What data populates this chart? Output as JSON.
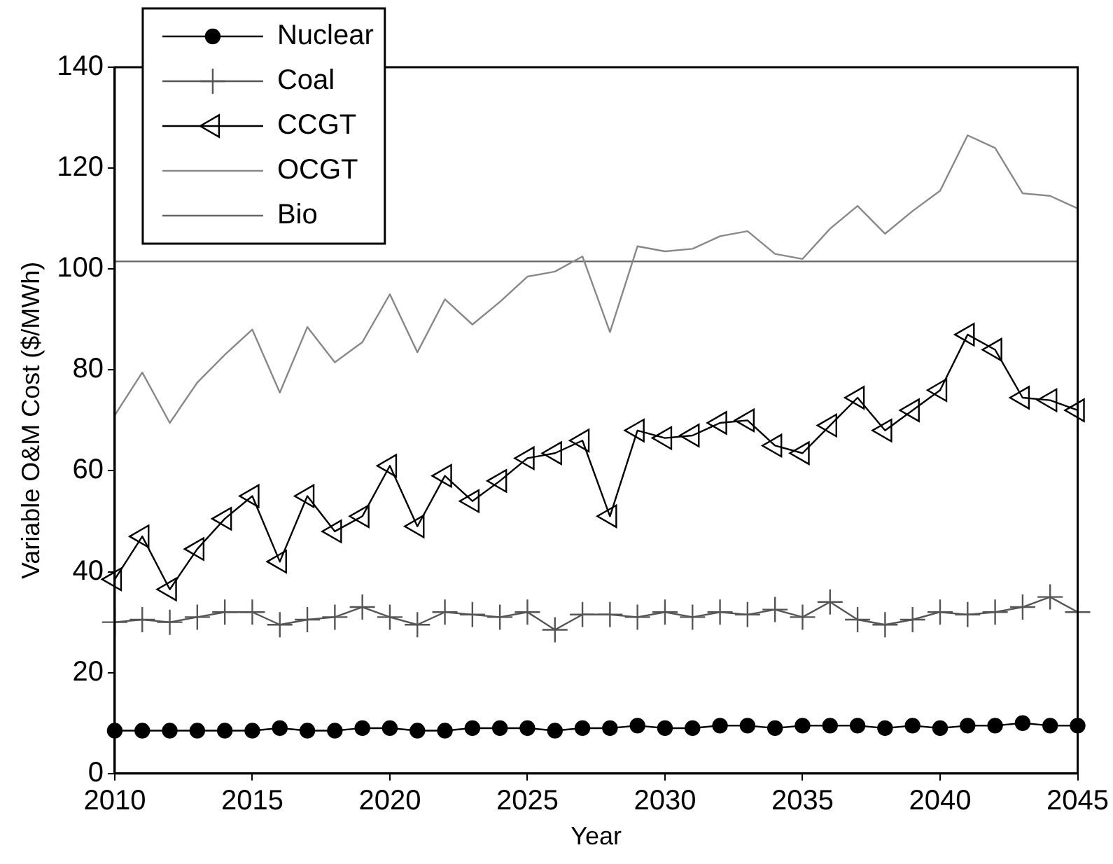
{
  "chart_data": {
    "type": "line",
    "xlabel": "Year",
    "ylabel": "Variable O&M Cost ($/MWh)",
    "x": [
      2010,
      2011,
      2012,
      2013,
      2014,
      2015,
      2016,
      2017,
      2018,
      2019,
      2020,
      2021,
      2022,
      2023,
      2024,
      2025,
      2026,
      2027,
      2028,
      2029,
      2030,
      2031,
      2032,
      2033,
      2034,
      2035,
      2036,
      2037,
      2038,
      2039,
      2040,
      2041,
      2042,
      2043,
      2044,
      2045
    ],
    "xlim": [
      2010,
      2045
    ],
    "xticks": [
      2010,
      2015,
      2020,
      2025,
      2030,
      2035,
      2040,
      2045
    ],
    "ylim": [
      0,
      140
    ],
    "yticks": [
      0,
      20,
      40,
      60,
      80,
      100,
      120,
      140
    ],
    "grid": false,
    "legend": "top left",
    "line_style": "solid",
    "series": [
      {
        "name": "Nuclear",
        "color": "#000000",
        "marker": "circle",
        "values": [
          8.5,
          8.5,
          8.5,
          8.5,
          8.5,
          8.5,
          9,
          8.5,
          8.5,
          9,
          9,
          8.5,
          8.5,
          9,
          9,
          9,
          8.5,
          9,
          9,
          9.5,
          9,
          9,
          9.5,
          9.5,
          9,
          9.5,
          9.5,
          9.5,
          9,
          9.5,
          9,
          9.5,
          9.5,
          10,
          9.5,
          9.5
        ]
      },
      {
        "name": "Coal",
        "color": "#555555",
        "marker": "cross",
        "values": [
          30,
          30.5,
          30,
          31,
          32,
          32,
          29.5,
          30.5,
          31,
          33,
          31,
          29.5,
          32,
          31.5,
          31,
          32,
          28.5,
          31.5,
          31.5,
          31,
          32,
          31,
          32,
          31.5,
          32.5,
          31,
          34,
          30.5,
          29.5,
          30.5,
          32,
          31.5,
          32,
          33,
          35,
          32
        ]
      },
      {
        "name": "CCGT",
        "color": "#000000",
        "marker": "triangle",
        "values": [
          38.5,
          47,
          36.5,
          44.5,
          50.5,
          55,
          42,
          55,
          48,
          51,
          61,
          49,
          59,
          54,
          58,
          62.5,
          63.5,
          66,
          51,
          68,
          66.5,
          67,
          69.5,
          70,
          65,
          63.5,
          69,
          74.5,
          68,
          72,
          76,
          87,
          84,
          74.5,
          74,
          72
        ]
      },
      {
        "name": "OCGT",
        "color": "#888888",
        "marker": "none",
        "values": [
          71,
          79.5,
          69.5,
          77.5,
          83,
          88,
          75.5,
          88.5,
          81.5,
          85.5,
          95,
          83.5,
          94,
          89,
          93.5,
          98.5,
          99.5,
          102.5,
          87.5,
          104.5,
          103.5,
          104,
          106.5,
          107.5,
          103,
          102,
          108,
          112.5,
          107,
          111.5,
          115.5,
          126.5,
          124,
          115,
          114.5,
          112
        ]
      },
      {
        "name": "Bio",
        "color": "#666666",
        "marker": "none",
        "values": [
          101.5,
          101.5,
          101.5,
          101.5,
          101.5,
          101.5,
          101.5,
          101.5,
          101.5,
          101.5,
          101.5,
          101.5,
          101.5,
          101.5,
          101.5,
          101.5,
          101.5,
          101.5,
          101.5,
          101.5,
          101.5,
          101.5,
          101.5,
          101.5,
          101.5,
          101.5,
          101.5,
          101.5,
          101.5,
          101.5,
          101.5,
          101.5,
          101.5,
          101.5,
          101.5,
          101.5
        ]
      }
    ]
  }
}
